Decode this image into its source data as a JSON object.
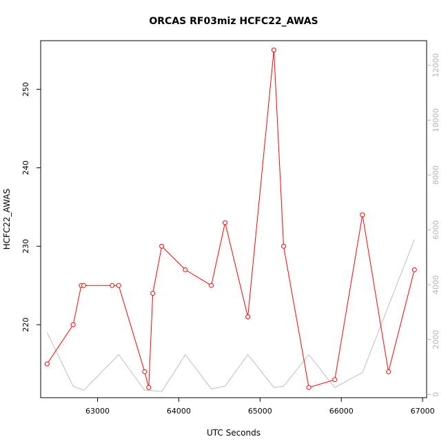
{
  "chart_data": {
    "type": "line",
    "title": "ORCAS RF03miz HCFC22_AWAS",
    "xlabel": "UTC Seconds",
    "ylabel": "HCFC22_AWAS",
    "xlim": [
      62300,
      67050
    ],
    "ylim": [
      210.7,
      256.2
    ],
    "y2lim": [
      -120,
      12900
    ],
    "x_ticks": [
      63000,
      64000,
      65000,
      66000,
      67000
    ],
    "y_ticks": [
      220,
      230,
      240,
      250
    ],
    "y2_ticks": [
      0,
      2000,
      4000,
      6000,
      8000,
      10000,
      12000
    ],
    "grid": false,
    "series": [
      {
        "axis": "left",
        "color": "#ff0000",
        "marker": "open-circle",
        "x": [
          62380,
          62700,
          62800,
          62830,
          63180,
          63260,
          63580,
          63630,
          63680,
          63790,
          64080,
          64400,
          64570,
          64850,
          65170,
          65290,
          65600,
          65920,
          66260,
          66580,
          66900
        ],
        "values": [
          215,
          220,
          225,
          225,
          225,
          225,
          214,
          212,
          224,
          230,
          227,
          225,
          233,
          221,
          255,
          230,
          212,
          213,
          234,
          214,
          227
        ]
      },
      {
        "axis": "right",
        "color": "#bebebe",
        "marker": "none",
        "x": [
          62380,
          62700,
          62830,
          63260,
          63580,
          63630,
          63790,
          64080,
          64400,
          64570,
          64850,
          65170,
          65290,
          65600,
          65920,
          66260,
          66900
        ],
        "values": [
          2250,
          300,
          150,
          1450,
          150,
          150,
          100,
          1450,
          200,
          300,
          1450,
          250,
          300,
          1450,
          250,
          800,
          5650
        ]
      }
    ]
  }
}
